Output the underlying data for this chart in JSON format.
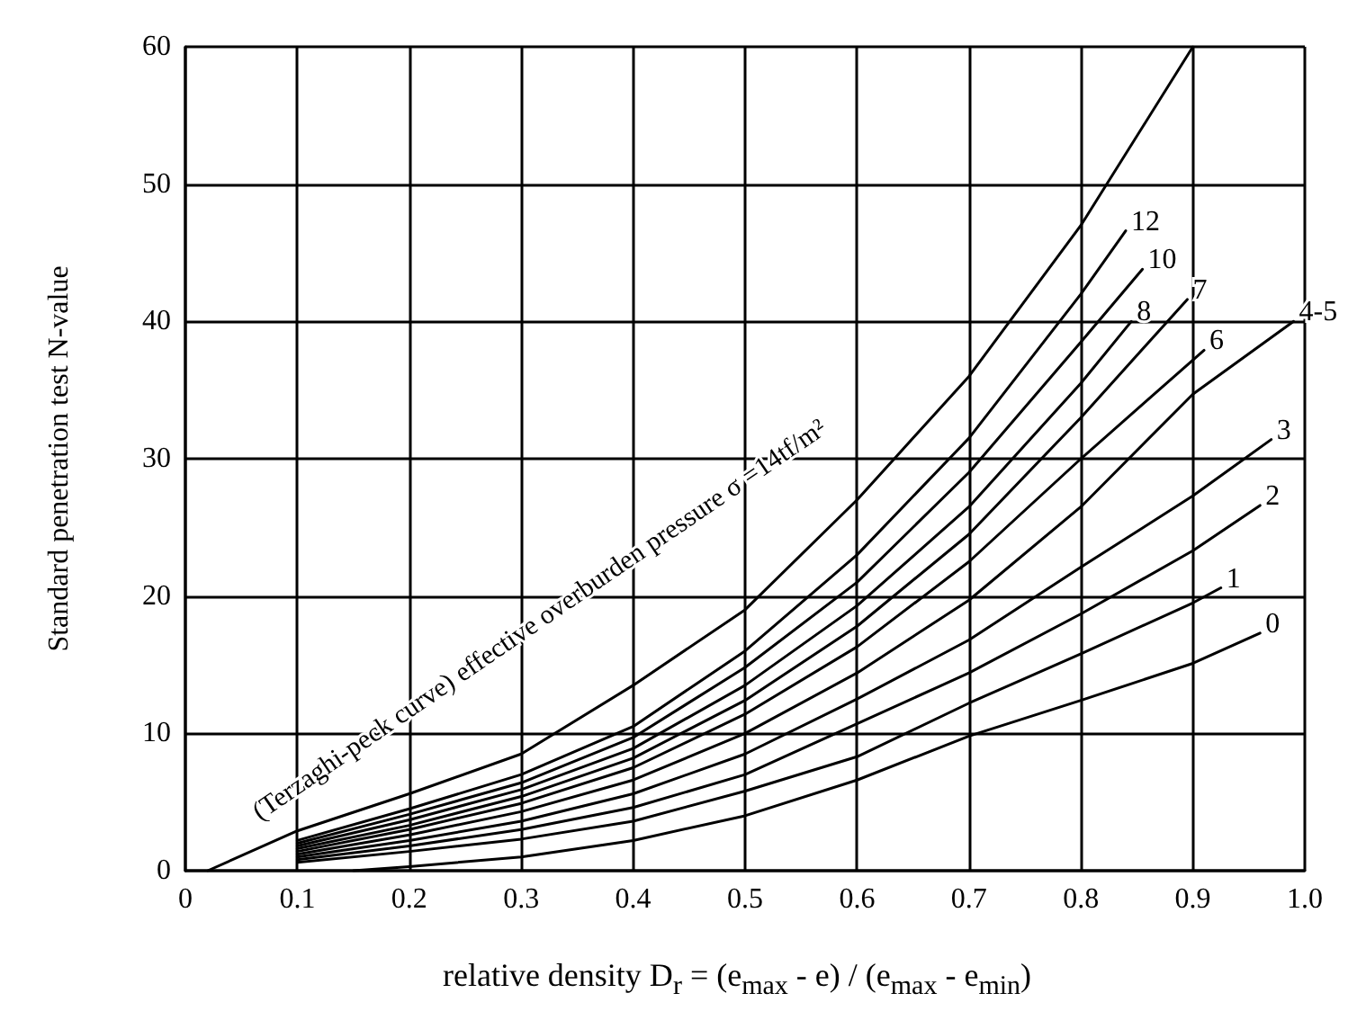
{
  "chart_data": {
    "type": "line",
    "xlabel": "relative density D$_{r}$ = (e$_{max}$ - e) / (e$_{max}$ - e$_{min}$)",
    "ylabel": "Standard penetration test N-value",
    "xlim": [
      0,
      1
    ],
    "xticks": [
      0,
      0.1,
      0.2,
      0.3,
      0.4,
      0.5,
      0.6,
      0.7,
      0.8,
      0.9,
      {
        "value": 1,
        "label": "1.0"
      }
    ],
    "ylim": [
      0,
      60
    ],
    "yticks": [
      0,
      10,
      20,
      30,
      40,
      50,
      60
    ],
    "grid": true,
    "legend": false,
    "marker": "none",
    "line_style": "solid",
    "annotations": [
      "(Terzaghi-peck curve) effective overburden pressure σ =14tf/m²"
    ],
    "series": [
      {
        "color": "#000000",
        "x": [
          0.02,
          0.1,
          0.2,
          0.3,
          0.4,
          0.5,
          0.6,
          0.7,
          0.8,
          0.9
        ],
        "values": [
          0,
          2.9,
          5.6,
          8.5,
          13.5,
          19,
          27,
          36,
          47,
          60
        ]
      },
      {
        "name": "12",
        "color": "#000000",
        "x": [
          0.1,
          0.2,
          0.3,
          0.4,
          0.5,
          0.6,
          0.7,
          0.8,
          0.84
        ],
        "values": [
          2.2,
          4.5,
          7,
          10.5,
          16,
          23,
          31.5,
          42,
          46.6
        ]
      },
      {
        "name": "10",
        "color": "#000000",
        "x": [
          0.1,
          0.2,
          0.3,
          0.4,
          0.5,
          0.6,
          0.7,
          0.8,
          0.855
        ],
        "values": [
          2,
          4.1,
          6.4,
          9.7,
          14.8,
          21,
          29,
          38.5,
          43.8
        ]
      },
      {
        "name": "8",
        "color": "#000000",
        "x": [
          0.1,
          0.2,
          0.3,
          0.4,
          0.5,
          0.6,
          0.7,
          0.8,
          0.845
        ],
        "values": [
          1.8,
          3.7,
          5.9,
          8.9,
          13.5,
          19.3,
          26.5,
          35.5,
          40
        ]
      },
      {
        "name": "7",
        "color": "#000000",
        "x": [
          0.1,
          0.2,
          0.3,
          0.4,
          0.5,
          0.6,
          0.7,
          0.8,
          0.895
        ],
        "values": [
          1.6,
          3.3,
          5.4,
          8.2,
          12.4,
          17.8,
          24.5,
          33,
          41.6
        ]
      },
      {
        "name": "6",
        "color": "#000000",
        "x": [
          0.1,
          0.2,
          0.3,
          0.4,
          0.5,
          0.6,
          0.7,
          0.8,
          0.91
        ],
        "values": [
          1.4,
          3,
          4.9,
          7.5,
          11.4,
          16.3,
          22.5,
          30,
          37.9
        ]
      },
      {
        "name": "4-5",
        "color": "#000000",
        "x": [
          0.1,
          0.2,
          0.3,
          0.4,
          0.5,
          0.6,
          0.7,
          0.8,
          0.9,
          0.99
        ],
        "values": [
          1.2,
          2.6,
          4.3,
          6.6,
          10,
          14.4,
          19.7,
          26.5,
          34.7,
          40
        ]
      },
      {
        "name": "3",
        "color": "#000000",
        "x": [
          0.1,
          0.2,
          0.3,
          0.4,
          0.5,
          0.6,
          0.7,
          0.8,
          0.9,
          0.97
        ],
        "values": [
          1,
          2.2,
          3.6,
          5.6,
          8.5,
          12.5,
          16.8,
          22.1,
          27.3,
          31.4
        ]
      },
      {
        "name": "2",
        "color": "#000000",
        "x": [
          0.1,
          0.2,
          0.3,
          0.4,
          0.5,
          0.6,
          0.7,
          0.8,
          0.9,
          0.96
        ],
        "values": [
          0.8,
          1.8,
          3,
          4.6,
          7,
          10.7,
          14.4,
          18.7,
          23.3,
          26.6
        ]
      },
      {
        "name": "1",
        "color": "#000000",
        "x": [
          0.1,
          0.2,
          0.3,
          0.4,
          0.5,
          0.6,
          0.7,
          0.8,
          0.9,
          0.925
        ],
        "values": [
          0.6,
          1.4,
          2.3,
          3.6,
          5.8,
          8.3,
          12.2,
          15.8,
          19.5,
          20.6
        ]
      },
      {
        "name": "0",
        "color": "#000000",
        "x": [
          0.15,
          0.2,
          0.3,
          0.4,
          0.5,
          0.6,
          0.7,
          0.8,
          0.9,
          0.96
        ],
        "values": [
          0,
          0.3,
          1,
          2.2,
          4,
          6.6,
          9.8,
          12.4,
          15.1,
          17.3
        ]
      }
    ]
  }
}
